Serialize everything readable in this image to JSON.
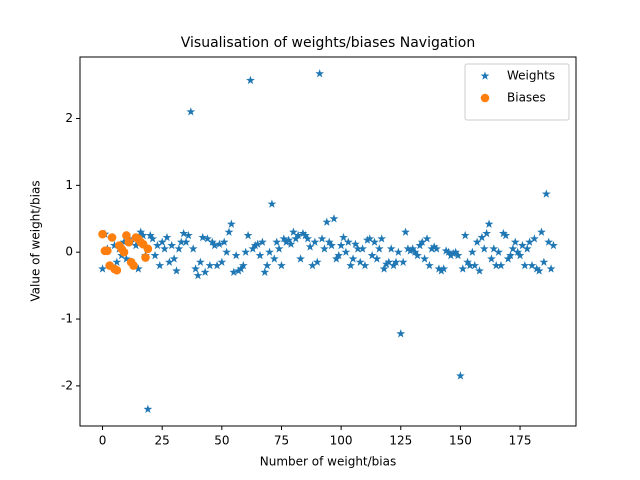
{
  "chart_data": {
    "type": "scatter",
    "title": "Visualisation of weights/biases Navigation",
    "x_label": "Number of weight/bias",
    "y_label": "Value of weight/bias",
    "xlim": [
      -9.45,
      198.45
    ],
    "xticks": [
      0,
      25,
      50,
      75,
      100,
      125,
      150,
      175
    ],
    "ylim": [
      -2.6,
      2.92
    ],
    "yticks": [
      -2,
      -1,
      0,
      1,
      2
    ],
    "grid": false,
    "legend": "upper right",
    "series": [
      {
        "name": "Weights",
        "color": "#1f77b4",
        "marker": "star",
        "x": [
          0,
          1,
          2,
          3,
          4,
          5,
          6,
          7,
          8,
          9,
          10,
          11,
          12,
          13,
          14,
          15,
          16,
          17,
          18,
          19,
          20,
          21,
          22,
          23,
          24,
          25,
          26,
          27,
          28,
          29,
          30,
          31,
          32,
          33,
          34,
          35,
          36,
          37,
          38,
          39,
          40,
          41,
          42,
          43,
          44,
          45,
          46,
          47,
          48,
          49,
          50,
          51,
          52,
          53,
          54,
          55,
          56,
          57,
          58,
          59,
          60,
          61,
          62,
          63,
          64,
          65,
          66,
          67,
          68,
          69,
          70,
          71,
          72,
          73,
          74,
          75,
          76,
          77,
          78,
          79,
          80,
          81,
          82,
          83,
          84,
          85,
          86,
          87,
          88,
          89,
          90,
          91,
          92,
          93,
          94,
          95,
          96,
          97,
          98,
          99,
          100,
          101,
          102,
          103,
          104,
          105,
          106,
          107,
          108,
          109,
          110,
          111,
          112,
          113,
          114,
          115,
          116,
          117,
          118,
          119,
          120,
          121,
          122,
          123,
          124,
          125,
          126,
          127,
          128,
          129,
          130,
          131,
          132,
          133,
          134,
          135,
          136,
          137,
          138,
          139,
          140,
          141,
          142,
          143,
          144,
          145,
          146,
          147,
          148,
          149,
          150,
          151,
          152,
          153,
          154,
          155,
          156,
          157,
          158,
          159,
          160,
          161,
          162,
          163,
          164,
          165,
          166,
          167,
          168,
          169,
          170,
          171,
          172,
          173,
          174,
          175,
          176,
          177,
          178,
          179,
          180,
          181,
          182,
          183,
          184,
          185,
          186,
          187,
          188,
          189
        ],
        "values": [
          -0.25,
          0.27,
          0.05,
          -0.2,
          0.22,
          0.1,
          -0.15,
          0.05,
          -0.05,
          0.15,
          -0.1,
          0.2,
          0.15,
          -0.2,
          0.1,
          -0.25,
          0.3,
          0.25,
          -0.05,
          -2.35,
          0.25,
          0.2,
          -0.05,
          0.1,
          -0.2,
          0.15,
          0.05,
          0.22,
          -0.15,
          0.1,
          -0.1,
          -0.28,
          0.05,
          0.15,
          0.28,
          0.15,
          0.25,
          2.1,
          0.05,
          -0.25,
          -0.35,
          -0.15,
          0.22,
          -0.3,
          0.2,
          -0.2,
          0.15,
          0.1,
          -0.2,
          0.12,
          -0.15,
          0.15,
          0.0,
          0.3,
          0.42,
          -0.3,
          -0.05,
          -0.28,
          -0.25,
          -0.2,
          0.0,
          0.25,
          2.57,
          0.05,
          0.1,
          0.12,
          -0.05,
          0.15,
          -0.3,
          -0.2,
          0.0,
          0.72,
          -0.1,
          0.15,
          0.05,
          -0.2,
          0.2,
          0.15,
          0.18,
          0.12,
          0.3,
          0.2,
          0.25,
          -0.1,
          0.28,
          0.25,
          0.2,
          0.08,
          -0.2,
          0.15,
          -0.15,
          2.67,
          0.2,
          0.05,
          0.45,
          0.15,
          0.1,
          0.5,
          -0.1,
          -0.05,
          0.1,
          0.22,
          0.0,
          0.15,
          -0.2,
          -0.1,
          0.12,
          0.05,
          -0.15,
          0.05,
          -0.2,
          0.18,
          0.2,
          -0.05,
          0.15,
          -0.1,
          0.05,
          0.2,
          -0.25,
          -0.18,
          -0.15,
          0.05,
          -0.2,
          -0.15,
          0.0,
          -1.22,
          -0.15,
          0.3,
          0.05,
          0.02,
          0.05,
          0.0,
          -0.05,
          0.1,
          0.15,
          -0.1,
          0.2,
          -0.2,
          0.05,
          0.08,
          0.05,
          -0.25,
          -0.28,
          -0.25,
          0.02,
          0.0,
          -0.05,
          -0.02,
          0.0,
          -0.05,
          -1.85,
          -0.25,
          0.25,
          -0.15,
          -0.2,
          0.0,
          -0.2,
          0.15,
          -0.28,
          0.22,
          0.05,
          0.28,
          0.42,
          -0.1,
          0.05,
          -0.2,
          0.0,
          -0.2,
          0.28,
          0.25,
          -0.1,
          -0.05,
          0.05,
          0.15,
          0.0,
          -0.05,
          0.1,
          -0.2,
          0.05,
          0.15,
          -0.2,
          0.2,
          -0.25,
          -0.28,
          0.3,
          -0.15,
          0.87,
          0.15,
          -0.25,
          0.1
        ]
      },
      {
        "name": "Biases",
        "color": "#ff7f0e",
        "marker": "circle",
        "x": [
          0,
          1,
          2,
          3,
          4,
          5,
          6,
          7,
          8,
          9,
          10,
          11,
          12,
          13,
          14,
          15,
          16,
          17,
          18,
          19
        ],
        "values": [
          0.27,
          0.02,
          0.02,
          -0.2,
          0.22,
          -0.25,
          -0.27,
          0.1,
          0.05,
          0.0,
          0.25,
          0.15,
          -0.15,
          -0.2,
          0.22,
          0.2,
          0.15,
          0.12,
          -0.08,
          0.05
        ]
      }
    ]
  }
}
